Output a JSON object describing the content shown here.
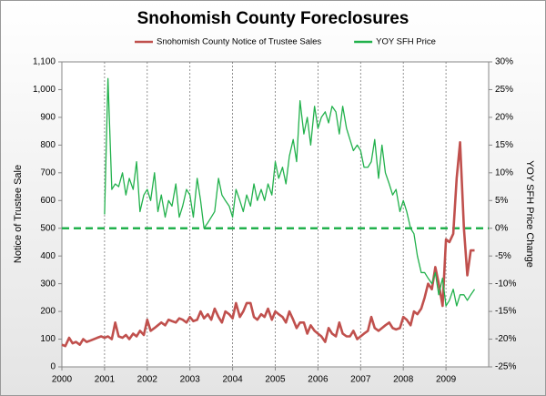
{
  "chart_data": {
    "type": "line",
    "title": "Snohomish County Foreclosures",
    "ylabel": "Notice of Trustee Sale",
    "y2label": "YOY SFH Price Change",
    "legend": "top",
    "xgrid": true,
    "xlim": [
      2000,
      2010
    ],
    "xticks": [
      2000,
      2001,
      2002,
      2003,
      2004,
      2005,
      2006,
      2007,
      2008,
      2009
    ],
    "ylim": [
      0,
      1100
    ],
    "yticks": [
      0,
      100,
      200,
      300,
      400,
      500,
      600,
      700,
      800,
      900,
      {
        "value": 1000,
        "label": "1,000"
      },
      {
        "value": 1100,
        "label": "1,100"
      }
    ],
    "y2lim": [
      -25,
      30
    ],
    "y2ticks": [
      {
        "value": -25,
        "label": "-25%"
      },
      {
        "value": -20,
        "label": "-20%"
      },
      {
        "value": -15,
        "label": "-15%"
      },
      {
        "value": -10,
        "label": "-10%"
      },
      {
        "value": -5,
        "label": "-5%"
      },
      {
        "value": 0,
        "label": "0%"
      },
      {
        "value": 5,
        "label": "5%"
      },
      {
        "value": 10,
        "label": "10%"
      },
      {
        "value": 15,
        "label": "15%"
      },
      {
        "value": 20,
        "label": "20%"
      },
      {
        "value": 25,
        "label": "25%"
      },
      {
        "value": 30,
        "label": "30%"
      }
    ],
    "y2_reference_line": 0,
    "x": [
      2000.0,
      2000.08,
      2000.17,
      2000.25,
      2000.33,
      2000.42,
      2000.5,
      2000.58,
      2000.67,
      2000.75,
      2000.83,
      2000.92,
      2001.0,
      2001.08,
      2001.17,
      2001.25,
      2001.33,
      2001.42,
      2001.5,
      2001.58,
      2001.67,
      2001.75,
      2001.83,
      2001.92,
      2002.0,
      2002.08,
      2002.17,
      2002.25,
      2002.33,
      2002.42,
      2002.5,
      2002.58,
      2002.67,
      2002.75,
      2002.83,
      2002.92,
      2003.0,
      2003.08,
      2003.17,
      2003.25,
      2003.33,
      2003.42,
      2003.5,
      2003.58,
      2003.67,
      2003.75,
      2003.83,
      2003.92,
      2004.0,
      2004.08,
      2004.17,
      2004.25,
      2004.33,
      2004.42,
      2004.5,
      2004.58,
      2004.67,
      2004.75,
      2004.83,
      2004.92,
      2005.0,
      2005.08,
      2005.17,
      2005.25,
      2005.33,
      2005.42,
      2005.5,
      2005.58,
      2005.67,
      2005.75,
      2005.83,
      2005.92,
      2006.0,
      2006.08,
      2006.17,
      2006.25,
      2006.33,
      2006.42,
      2006.5,
      2006.58,
      2006.67,
      2006.75,
      2006.83,
      2006.92,
      2007.0,
      2007.08,
      2007.17,
      2007.25,
      2007.33,
      2007.42,
      2007.5,
      2007.58,
      2007.67,
      2007.75,
      2007.83,
      2007.92,
      2008.0,
      2008.08,
      2008.17,
      2008.25,
      2008.33,
      2008.42,
      2008.5,
      2008.58,
      2008.67,
      2008.75,
      2008.83,
      2008.92,
      2009.0,
      2009.08,
      2009.17,
      2009.25,
      2009.33,
      2009.42,
      2009.5,
      2009.58,
      2009.67
    ],
    "series": [
      {
        "name": "Snohomish County Notice of Trustee Sales",
        "color": "#c0504d",
        "values": [
          80,
          75,
          105,
          85,
          90,
          80,
          100,
          90,
          95,
          100,
          105,
          110,
          105,
          110,
          100,
          160,
          110,
          105,
          115,
          100,
          120,
          110,
          130,
          115,
          170,
          130,
          140,
          150,
          160,
          150,
          170,
          165,
          160,
          175,
          170,
          160,
          180,
          165,
          170,
          200,
          175,
          190,
          170,
          210,
          180,
          160,
          200,
          190,
          175,
          230,
          180,
          200,
          230,
          230,
          180,
          170,
          190,
          180,
          210,
          170,
          200,
          190,
          180,
          160,
          200,
          170,
          140,
          160,
          160,
          120,
          150,
          130,
          120,
          110,
          90,
          140,
          120,
          110,
          160,
          120,
          110,
          110,
          130,
          100,
          110,
          120,
          130,
          180,
          140,
          130,
          140,
          150,
          160,
          140,
          135,
          140,
          180,
          170,
          150,
          200,
          190,
          210,
          250,
          300,
          280,
          360,
          300,
          220,
          460,
          450,
          480,
          680,
          810,
          500,
          330,
          420,
          420
        ]
      },
      {
        "name": "YOY SFH Price",
        "color": "#22b14c",
        "axis": "y2",
        "values": [
          null,
          null,
          null,
          null,
          null,
          null,
          null,
          null,
          null,
          null,
          null,
          null,
          2.5,
          27,
          7,
          8,
          7.5,
          10,
          6,
          9,
          7,
          12,
          3,
          6,
          7,
          5,
          10,
          3,
          6,
          2,
          5,
          4,
          8,
          2,
          4,
          7,
          6,
          2,
          9,
          5,
          0,
          1,
          2,
          3,
          9,
          6,
          5,
          4,
          2,
          7,
          5,
          3,
          6,
          4,
          8,
          5,
          7,
          5,
          8,
          6,
          12,
          9,
          11,
          8,
          13,
          16,
          12,
          23,
          17,
          20,
          15,
          22,
          18,
          20,
          21,
          19,
          22,
          21,
          17,
          22,
          18,
          16,
          14,
          15,
          14,
          11,
          11,
          12,
          16,
          9,
          15,
          10,
          8,
          6,
          7,
          3,
          5,
          3,
          0,
          -1,
          -5,
          -8,
          -8,
          -9,
          -10,
          -8,
          -12,
          -9,
          -14,
          -13,
          -11,
          -14,
          -12,
          -12,
          -13,
          -12,
          -11
        ]
      }
    ]
  }
}
